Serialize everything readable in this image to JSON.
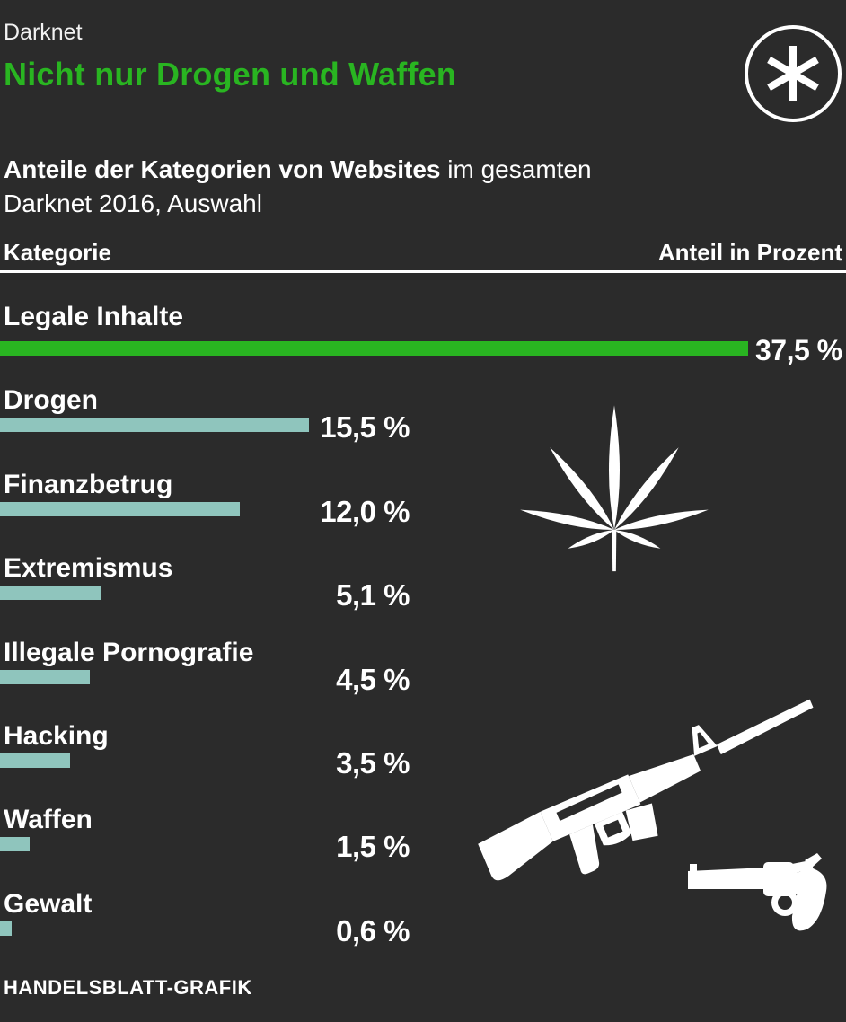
{
  "colors": {
    "background": "#2b2b2b",
    "accent_green": "#29b521",
    "bar_teal": "#8fc5bd",
    "text": "#ffffff",
    "rule": "#ffffff"
  },
  "header": {
    "kicker": "Darknet",
    "title": "Nicht nur Drogen und Waffen",
    "badge_icon": "asterisk-icon"
  },
  "subtitle": {
    "bold": "Anteile der Kategorien von Websites",
    "regular_line1": " im gesamten",
    "regular_line2": "Darknet 2016, Auswahl"
  },
  "table_header": {
    "left": "Kategorie",
    "right": "Anteil in Prozent"
  },
  "chart_data": {
    "type": "bar",
    "orientation": "horizontal",
    "title": "Anteile der Kategorien von Websites im gesamten Darknet 2016, Auswahl",
    "categories": [
      "Legale Inhalte",
      "Drogen",
      "Finanzbetrug",
      "Extremismus",
      "Illegale Pornografie",
      "Hacking",
      "Waffen",
      "Gewalt"
    ],
    "values": [
      37.5,
      15.5,
      12.0,
      5.1,
      4.5,
      3.5,
      1.5,
      0.6
    ],
    "value_labels": [
      "37,5 %",
      "15,5 %",
      "12,0 %",
      "5,1 %",
      "4,5 %",
      "3,5 %",
      "1,5 %",
      "0,6 %"
    ],
    "unit": "Prozent",
    "xlim": [
      0,
      37.5
    ],
    "bar_colors": [
      "#29b521",
      "#8fc5bd",
      "#8fc5bd",
      "#8fc5bd",
      "#8fc5bd",
      "#8fc5bd",
      "#8fc5bd",
      "#8fc5bd"
    ],
    "grid": false,
    "legend": false
  },
  "icons": {
    "drugs": "cannabis-leaf-icon",
    "weapons_rifle": "rifle-icon",
    "weapons_revolver": "revolver-icon"
  },
  "footer": {
    "credit": "HANDELSBLATT-GRAFIK"
  }
}
